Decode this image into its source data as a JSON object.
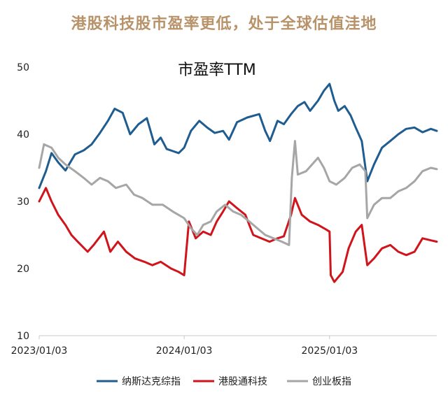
{
  "headline": "港股科技股市盈率更低，处于全球估值洼地",
  "colors": {
    "headline": "#b8936a",
    "nasdaq": "#1f5c8f",
    "hktech": "#d0141b",
    "chinext": "#a6a6a6",
    "axis": "#c8c8c8"
  },
  "chart_data": {
    "type": "line",
    "title": "市盈率TTM",
    "xlabel": "",
    "ylabel": "",
    "ylim": [
      10,
      50
    ],
    "yticks": [
      10,
      20,
      30,
      40,
      50
    ],
    "xlim": [
      "2023-01-03",
      "2025-09-30"
    ],
    "xticks": [
      {
        "date": "2023-01-03",
        "label": "2023/01/03"
      },
      {
        "date": "2024-01-03",
        "label": "2024/01/03"
      },
      {
        "date": "2025-01-03",
        "label": "2025/01/03"
      }
    ],
    "grid": false,
    "legend_position": "bottom",
    "series": [
      {
        "name": "纳斯达克综指",
        "color": "#1f5c8f",
        "points": [
          [
            "2023-01-03",
            32.0
          ],
          [
            "2023-01-20",
            34.5
          ],
          [
            "2023-02-03",
            37.2
          ],
          [
            "2023-02-20",
            35.8
          ],
          [
            "2023-03-10",
            34.6
          ],
          [
            "2023-04-03",
            37.0
          ],
          [
            "2023-04-25",
            37.6
          ],
          [
            "2023-05-15",
            38.5
          ],
          [
            "2023-06-05",
            40.2
          ],
          [
            "2023-06-25",
            42.0
          ],
          [
            "2023-07-12",
            43.8
          ],
          [
            "2023-08-01",
            43.2
          ],
          [
            "2023-08-20",
            40.0
          ],
          [
            "2023-09-10",
            41.5
          ],
          [
            "2023-10-01",
            42.4
          ],
          [
            "2023-10-20",
            38.5
          ],
          [
            "2023-11-05",
            39.5
          ],
          [
            "2023-11-20",
            37.8
          ],
          [
            "2023-12-05",
            37.5
          ],
          [
            "2023-12-20",
            37.2
          ],
          [
            "2024-01-03",
            38.0
          ],
          [
            "2024-01-20",
            40.5
          ],
          [
            "2024-02-10",
            42.0
          ],
          [
            "2024-03-01",
            41.0
          ],
          [
            "2024-03-20",
            40.2
          ],
          [
            "2024-04-10",
            40.5
          ],
          [
            "2024-04-25",
            39.2
          ],
          [
            "2024-05-15",
            41.8
          ],
          [
            "2024-06-10",
            42.5
          ],
          [
            "2024-07-10",
            43.0
          ],
          [
            "2024-07-25",
            40.5
          ],
          [
            "2024-08-06",
            39.0
          ],
          [
            "2024-08-25",
            42.0
          ],
          [
            "2024-09-10",
            41.5
          ],
          [
            "2024-09-28",
            43.0
          ],
          [
            "2024-10-15",
            44.2
          ],
          [
            "2024-11-01",
            44.8
          ],
          [
            "2024-11-15",
            43.5
          ],
          [
            "2024-12-05",
            45.0
          ],
          [
            "2024-12-20",
            46.5
          ],
          [
            "2025-01-03",
            47.5
          ],
          [
            "2025-01-15",
            45.0
          ],
          [
            "2025-01-25",
            43.5
          ],
          [
            "2025-02-10",
            44.2
          ],
          [
            "2025-02-25",
            42.8
          ],
          [
            "2025-03-10",
            41.0
          ],
          [
            "2025-03-25",
            39.0
          ],
          [
            "2025-04-08",
            33.0
          ],
          [
            "2025-04-25",
            35.5
          ],
          [
            "2025-05-15",
            38.0
          ],
          [
            "2025-06-05",
            39.0
          ],
          [
            "2025-06-25",
            40.0
          ],
          [
            "2025-07-15",
            40.8
          ],
          [
            "2025-08-05",
            41.0
          ],
          [
            "2025-08-25",
            40.3
          ],
          [
            "2025-09-15",
            40.8
          ],
          [
            "2025-09-30",
            40.5
          ]
        ]
      },
      {
        "name": "港股通科技",
        "color": "#d0141b",
        "points": [
          [
            "2023-01-03",
            30.0
          ],
          [
            "2023-01-20",
            32.0
          ],
          [
            "2023-02-03",
            30.0
          ],
          [
            "2023-02-20",
            28.0
          ],
          [
            "2023-03-10",
            26.5
          ],
          [
            "2023-03-25",
            25.0
          ],
          [
            "2023-04-10",
            24.0
          ],
          [
            "2023-05-05",
            22.5
          ],
          [
            "2023-05-20",
            23.5
          ],
          [
            "2023-06-15",
            25.5
          ],
          [
            "2023-07-01",
            22.5
          ],
          [
            "2023-07-20",
            24.0
          ],
          [
            "2023-08-10",
            22.5
          ],
          [
            "2023-09-01",
            21.5
          ],
          [
            "2023-09-25",
            21.0
          ],
          [
            "2023-10-15",
            20.5
          ],
          [
            "2023-11-05",
            21.0
          ],
          [
            "2023-12-01",
            20.0
          ],
          [
            "2023-12-20",
            19.5
          ],
          [
            "2024-01-03",
            19.0
          ],
          [
            "2024-01-15",
            27.0
          ],
          [
            "2024-02-01",
            24.5
          ],
          [
            "2024-02-20",
            25.5
          ],
          [
            "2024-03-10",
            25.0
          ],
          [
            "2024-03-25",
            27.0
          ],
          [
            "2024-04-10",
            28.5
          ],
          [
            "2024-04-25",
            30.0
          ],
          [
            "2024-05-15",
            29.0
          ],
          [
            "2024-06-05",
            28.0
          ],
          [
            "2024-06-25",
            25.0
          ],
          [
            "2024-07-15",
            24.5
          ],
          [
            "2024-08-05",
            24.0
          ],
          [
            "2024-08-25",
            24.5
          ],
          [
            "2024-09-10",
            24.8
          ],
          [
            "2024-09-28",
            28.0
          ],
          [
            "2024-10-08",
            30.5
          ],
          [
            "2024-10-25",
            28.0
          ],
          [
            "2024-11-15",
            27.0
          ],
          [
            "2024-12-05",
            26.5
          ],
          [
            "2024-12-20",
            26.0
          ],
          [
            "2025-01-03",
            25.5
          ],
          [
            "2025-01-06",
            19.0
          ],
          [
            "2025-01-15",
            18.0
          ],
          [
            "2025-02-05",
            19.5
          ],
          [
            "2025-02-20",
            23.0
          ],
          [
            "2025-03-10",
            25.5
          ],
          [
            "2025-03-25",
            26.5
          ],
          [
            "2025-04-08",
            20.5
          ],
          [
            "2025-04-25",
            21.5
          ],
          [
            "2025-05-15",
            23.0
          ],
          [
            "2025-06-05",
            23.5
          ],
          [
            "2025-06-25",
            22.5
          ],
          [
            "2025-07-15",
            22.0
          ],
          [
            "2025-08-05",
            22.5
          ],
          [
            "2025-08-25",
            24.5
          ],
          [
            "2025-09-15",
            24.2
          ],
          [
            "2025-09-30",
            24.0
          ]
        ]
      },
      {
        "name": "创业板指",
        "color": "#a6a6a6",
        "points": [
          [
            "2023-01-03",
            35.0
          ],
          [
            "2023-01-15",
            38.5
          ],
          [
            "2023-02-03",
            38.0
          ],
          [
            "2023-02-20",
            36.5
          ],
          [
            "2023-03-10",
            35.5
          ],
          [
            "2023-04-03",
            34.5
          ],
          [
            "2023-04-25",
            33.5
          ],
          [
            "2023-05-15",
            32.5
          ],
          [
            "2023-06-05",
            33.5
          ],
          [
            "2023-06-25",
            33.0
          ],
          [
            "2023-07-15",
            32.0
          ],
          [
            "2023-08-10",
            32.5
          ],
          [
            "2023-08-30",
            31.0
          ],
          [
            "2023-09-20",
            30.5
          ],
          [
            "2023-10-15",
            29.5
          ],
          [
            "2023-11-10",
            29.5
          ],
          [
            "2023-12-05",
            28.5
          ],
          [
            "2024-01-03",
            27.5
          ],
          [
            "2024-01-20",
            26.0
          ],
          [
            "2024-02-05",
            25.0
          ],
          [
            "2024-02-20",
            26.5
          ],
          [
            "2024-03-10",
            27.0
          ],
          [
            "2024-03-25",
            28.5
          ],
          [
            "2024-04-15",
            29.5
          ],
          [
            "2024-05-05",
            28.5
          ],
          [
            "2024-05-25",
            28.0
          ],
          [
            "2024-06-15",
            27.0
          ],
          [
            "2024-07-05",
            26.0
          ],
          [
            "2024-07-25",
            25.0
          ],
          [
            "2024-08-15",
            24.5
          ],
          [
            "2024-09-05",
            24.0
          ],
          [
            "2024-09-23",
            23.5
          ],
          [
            "2024-09-30",
            33.5
          ],
          [
            "2024-10-08",
            39.0
          ],
          [
            "2024-10-15",
            34.0
          ],
          [
            "2024-11-05",
            34.5
          ],
          [
            "2024-11-20",
            35.5
          ],
          [
            "2024-12-05",
            36.5
          ],
          [
            "2024-12-20",
            35.0
          ],
          [
            "2025-01-03",
            33.0
          ],
          [
            "2025-01-20",
            32.5
          ],
          [
            "2025-02-10",
            33.5
          ],
          [
            "2025-03-01",
            35.0
          ],
          [
            "2025-03-20",
            35.5
          ],
          [
            "2025-04-03",
            34.5
          ],
          [
            "2025-04-08",
            27.5
          ],
          [
            "2025-04-25",
            29.5
          ],
          [
            "2025-05-15",
            30.5
          ],
          [
            "2025-06-05",
            30.5
          ],
          [
            "2025-06-25",
            31.5
          ],
          [
            "2025-07-15",
            32.0
          ],
          [
            "2025-08-05",
            33.0
          ],
          [
            "2025-08-25",
            34.5
          ],
          [
            "2025-09-15",
            35.0
          ],
          [
            "2025-09-30",
            34.8
          ]
        ]
      }
    ]
  }
}
